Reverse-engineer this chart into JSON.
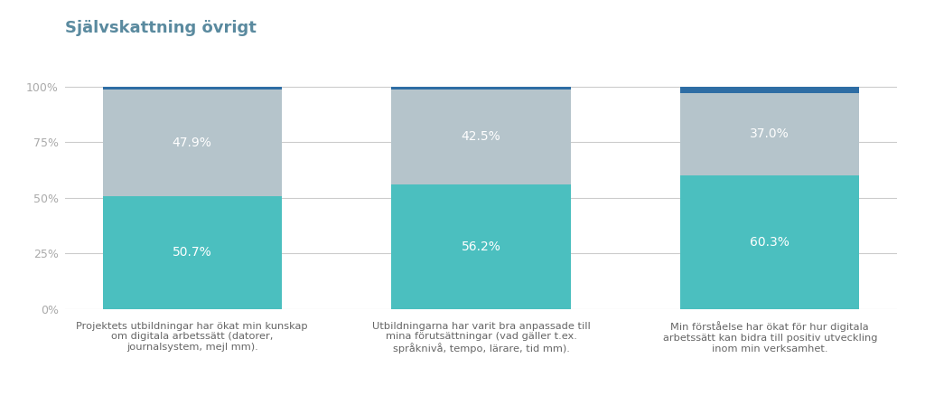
{
  "title": "Självskattning övrigt",
  "categories": [
    "Projektets utbildningar har ökat min kunskap\nom digitala arbetssätt (datorer,\njournalsystem, mejl mm).",
    "Utbildningarna har varit bra anpassade till\nmina förutsättningar (vad gäller t.ex.\nspråknivå, tempo, lärare, tid mm).",
    "Min förståelse har ökat för hur digitala\narbetssätt kan bidra till positiv utveckling\ninom min verksamhet."
  ],
  "segment1_values": [
    50.7,
    56.2,
    60.3
  ],
  "segment2_values": [
    47.9,
    42.5,
    37.0
  ],
  "segment3_values": [
    1.4,
    1.3,
    2.7
  ],
  "segment1_color": "#4bbfbf",
  "segment2_color": "#b5c4cb",
  "segment3_color": "#2e6da4",
  "segment1_labels": [
    "50.7%",
    "56.2%",
    "60.3%"
  ],
  "segment2_labels": [
    "47.9%",
    "42.5%",
    "37.0%"
  ],
  "text_color": "#ffffff",
  "title_color": "#5a8a9f",
  "axis_color": "#cccccc",
  "background_color": "#ffffff",
  "bar_width": 0.62,
  "label_fontsize": 10,
  "title_fontsize": 13,
  "tick_fontsize": 9,
  "category_fontsize": 8.2,
  "tick_color": "#aaaaaa"
}
